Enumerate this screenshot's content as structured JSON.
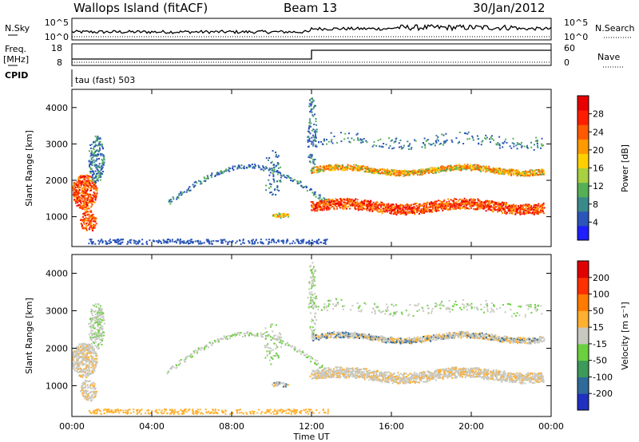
{
  "header": {
    "station": "Wallops Island (fitACF)",
    "beam": "Beam 13",
    "date": "30/Jan/2012"
  },
  "strips": {
    "nsky_label": "N.Sky",
    "nsearch_label": "N.Search",
    "noise_ticks": [
      "10^5",
      "10^0"
    ],
    "freq_label": "Freq.",
    "freq_unit": "[MHz]",
    "freq_ticks": [
      "18",
      "8"
    ],
    "nave_label": "Nave",
    "nave_ticks": [
      "60",
      "0"
    ],
    "cpid_label": "CPID",
    "cpid_value": "tau (fast) 503"
  },
  "chart_data": [
    {
      "type": "heatmap",
      "name": "power",
      "ylabel": "Slant Range [km]",
      "xlabel": "Time UT",
      "x_ticks": [
        "00:00",
        "04:00",
        "08:00",
        "12:00",
        "16:00",
        "20:00",
        "00:00"
      ],
      "y_ticks": [
        "1000",
        "2000",
        "3000",
        "4000"
      ],
      "ylim": [
        180,
        4500
      ],
      "colorbar": {
        "label": "Power [dB]",
        "ticks": [
          "4",
          "8",
          "12",
          "16",
          "20",
          "24",
          "28"
        ],
        "colors": [
          "#1e1eff",
          "#2b55b8",
          "#3a8a8a",
          "#55b055",
          "#a8d040",
          "#ffd000",
          "#ff9a00",
          "#ff5a00",
          "#ff1e00",
          "#e80000"
        ]
      }
    },
    {
      "type": "heatmap",
      "name": "velocity",
      "ylabel": "Slant Range [km]",
      "xlabel": "Time UT",
      "x_ticks": [
        "00:00",
        "04:00",
        "08:00",
        "12:00",
        "16:00",
        "20:00",
        "00:00"
      ],
      "y_ticks": [
        "1000",
        "2000",
        "3000",
        "4000"
      ],
      "ylim": [
        180,
        4500
      ],
      "colorbar": {
        "label": "Velocity [m s⁻¹]",
        "ticks": [
          "200",
          "100",
          "50",
          "15",
          "-15",
          "-50",
          "-100",
          "-200"
        ],
        "colors": [
          "#2030c0",
          "#2e6a9a",
          "#3c9a5a",
          "#6ad040",
          "#c8c8c0",
          "#ffb030",
          "#ff7a00",
          "#ff3000",
          "#e00000"
        ]
      }
    }
  ]
}
